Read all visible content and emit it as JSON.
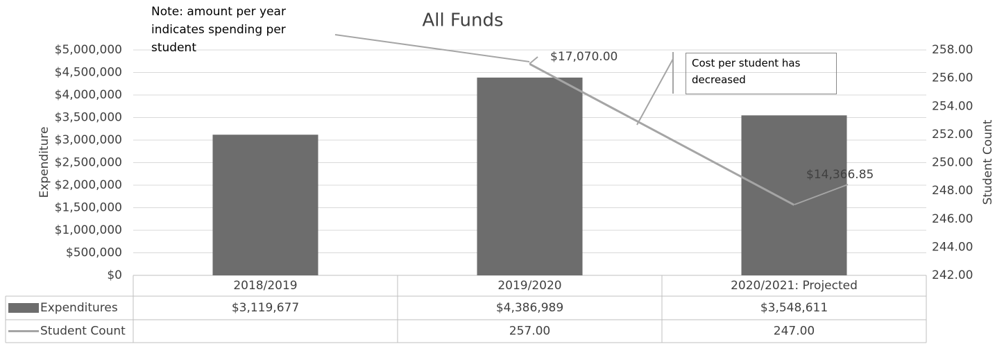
{
  "chart_data": {
    "type": "bar_line",
    "title": "All Funds",
    "y_label": "Expenditure",
    "y2_label": "Student Count",
    "categories": [
      "2018/2019",
      "2019/2020",
      "2020/2021: Projected"
    ],
    "series": [
      {
        "name": "Expenditures",
        "type": "bar",
        "color": "#6d6d6d",
        "values": [
          3119677,
          4386989,
          3548611
        ],
        "value_labels": [
          "$3,119,677",
          "$4,386,989",
          "$3,548,611"
        ]
      },
      {
        "name": "Student Count",
        "type": "line",
        "axis": "y2",
        "color": "#a5a5a5",
        "values": [
          null,
          257,
          247
        ],
        "value_labels": [
          null,
          "257.00",
          "247.00"
        ]
      }
    ],
    "ylim": [
      0,
      5000000
    ],
    "yticks": [
      {
        "value": 0,
        "label": "$0"
      },
      {
        "value": 500000,
        "label": "$500,000"
      },
      {
        "value": 1000000,
        "label": "$1,000,000"
      },
      {
        "value": 1500000,
        "label": "$1,500,000"
      },
      {
        "value": 2000000,
        "label": "$2,000,000"
      },
      {
        "value": 2500000,
        "label": "$2,500,000"
      },
      {
        "value": 3000000,
        "label": "$3,000,000"
      },
      {
        "value": 3500000,
        "label": "$3,500,000"
      },
      {
        "value": 4000000,
        "label": "$4,000,000"
      },
      {
        "value": 4500000,
        "label": "$4,500,000"
      },
      {
        "value": 5000000,
        "label": "$5,000,000"
      }
    ],
    "y2lim": [
      242,
      258
    ],
    "y2ticks": [
      {
        "value": 242,
        "label": "242.00"
      },
      {
        "value": 244,
        "label": "244.00"
      },
      {
        "value": 246,
        "label": "246.00"
      },
      {
        "value": 248,
        "label": "248.00"
      },
      {
        "value": 250,
        "label": "250.00"
      },
      {
        "value": 252,
        "label": "252.00"
      },
      {
        "value": 254,
        "label": "254.00"
      },
      {
        "value": 256,
        "label": "256.00"
      },
      {
        "value": 258,
        "label": "258.00"
      }
    ],
    "grid": true,
    "annotations": [
      "$17,070.00",
      "$14,366.85",
      "Note: amount per year indicates spending per student",
      "Cost per student has decreased"
    ]
  }
}
